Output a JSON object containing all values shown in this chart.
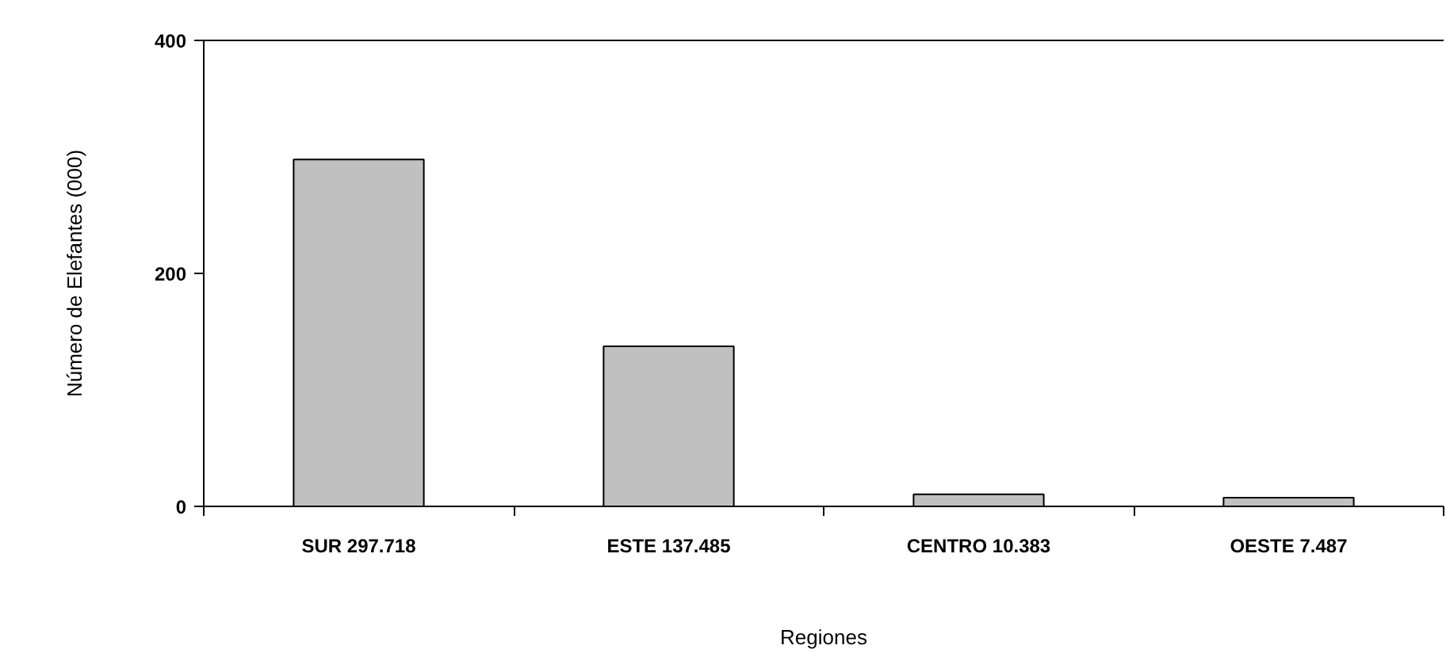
{
  "chart_data": {
    "type": "bar",
    "xlabel": "Regiones",
    "ylabel": "Número de Elefantes (000)",
    "categories": [
      "SUR 297.718",
      "ESTE 137.485",
      "CENTRO 10.383",
      "OESTE 7.487"
    ],
    "values": [
      297.718,
      137.485,
      10.383,
      7.487
    ],
    "color": "#c0c0c0",
    "ylim": [
      0,
      400
    ],
    "yticks": [
      0,
      200,
      400
    ],
    "grid": false
  }
}
